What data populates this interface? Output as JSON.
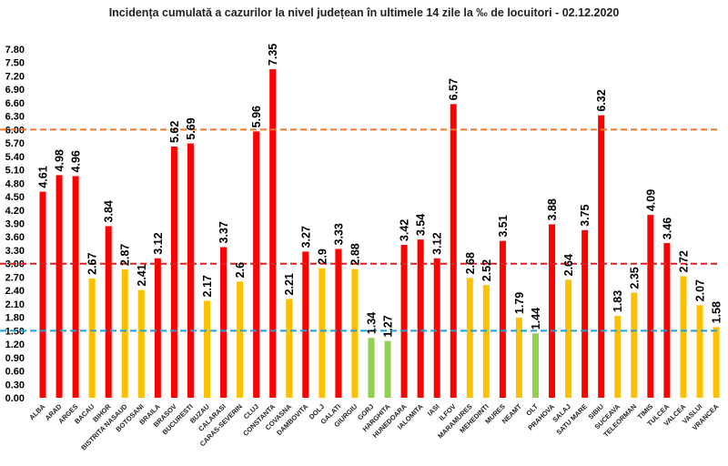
{
  "chart_data": {
    "type": "bar",
    "title": "Incidența cumulată a cazurilor la nivel județean în ultimele 14 zile la ‰ de locuitori - 02.12.2020",
    "xlabel": "",
    "ylabel": "",
    "ylim": [
      0,
      7.8
    ],
    "ytick_step": 0.3,
    "grid": false,
    "categories": [
      "ALBA",
      "ARAD",
      "ARGES",
      "BACAU",
      "BIHOR",
      "BISTRITA NASAUD",
      "BOTOSANI",
      "BRAILA",
      "BRASOV",
      "BUCURESTI",
      "BUZAU",
      "CALARASI",
      "CARAS-SEVERIN",
      "CLUJ",
      "CONSTANTA",
      "COVASNA",
      "DAMBOVITA",
      "DOLJ",
      "GALATI",
      "GIURGIU",
      "GORJ",
      "HARGHITA",
      "HUNEDOARA",
      "IALOMITA",
      "IASI",
      "ILFOV",
      "MARAMURES",
      "MEHEDINTI",
      "MURES",
      "NEAMT",
      "OLT",
      "PRAHOVA",
      "SALAJ",
      "SATU MARE",
      "SIBIU",
      "SUCEAVA",
      "TELEORMAN",
      "TIMIS",
      "TULCEA",
      "VALCEA",
      "VASLUI",
      "VRANCEA"
    ],
    "values": [
      4.61,
      4.98,
      4.96,
      2.67,
      3.84,
      2.87,
      2.41,
      3.12,
      5.62,
      5.69,
      2.17,
      3.37,
      2.6,
      5.96,
      7.35,
      2.21,
      3.27,
      2.9,
      3.33,
      2.88,
      1.34,
      1.27,
      3.42,
      3.54,
      3.12,
      6.57,
      2.68,
      2.52,
      3.51,
      1.79,
      1.44,
      3.88,
      2.64,
      3.75,
      6.32,
      1.83,
      2.35,
      4.09,
      3.46,
      2.72,
      2.07,
      1.58
    ],
    "value_labels": [
      "4.61",
      "4.98",
      "4.96",
      "2.67",
      "3.84",
      "2.87",
      "2.41",
      "3.12",
      "5.62",
      "5.69",
      "2.17",
      "3.37",
      "2.6",
      "5.96",
      "7.35",
      "2.21",
      "3.27",
      "2.9",
      "3.33",
      "2.88",
      "1.34",
      "1.27",
      "3.42",
      "3.54",
      "3.12",
      "6.57",
      "2.68",
      "2.52",
      "3.51",
      "1.79",
      "1.44",
      "3.88",
      "2.64",
      "3.75",
      "6.32",
      "1.83",
      "2.35",
      "4.09",
      "3.46",
      "2.72",
      "2.07",
      "1.58"
    ],
    "color_rule": {
      "above_3": "#ff0000",
      "between_1_5_and_3": "#ffc000",
      "below_1_5": "#92d050"
    },
    "threshold_lines": [
      {
        "value": 6.0,
        "color": "#f07a28",
        "style": "dashed"
      },
      {
        "value": 3.0,
        "color": "#e02020",
        "style": "dashed"
      },
      {
        "value": 1.5,
        "color": "#1fa0d8",
        "style": "dashed"
      }
    ]
  }
}
